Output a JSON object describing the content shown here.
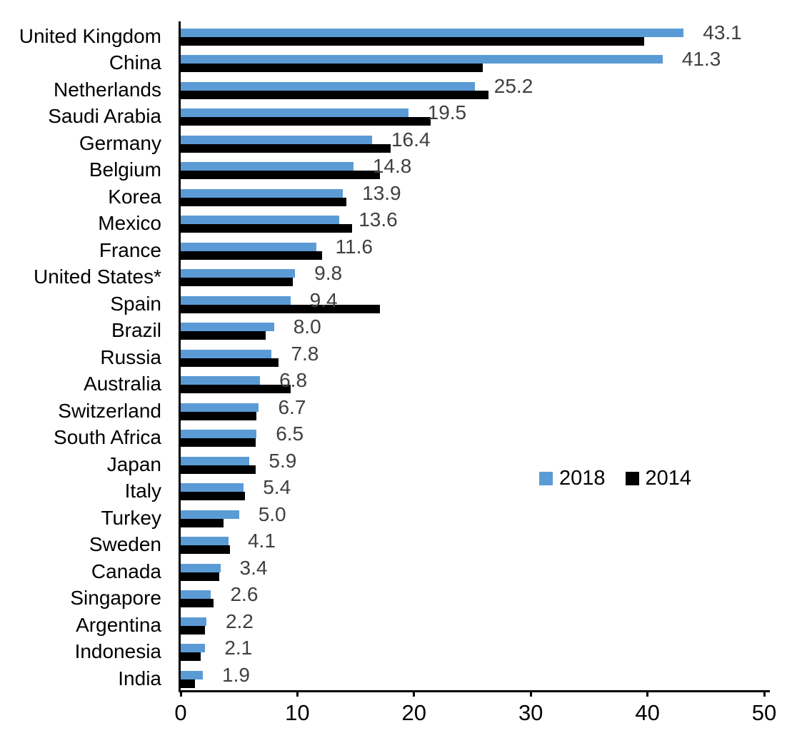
{
  "chart_data": {
    "type": "bar",
    "orientation": "horizontal",
    "title": "",
    "xlabel": "",
    "ylabel": "",
    "xlim": [
      0,
      50
    ],
    "x_ticks": [
      "0",
      "10",
      "20",
      "30",
      "40",
      "50"
    ],
    "grid": false,
    "legend_position": "middle-right",
    "categories": [
      "United Kingdom",
      "China",
      "Netherlands",
      "Saudi Arabia",
      "Germany",
      "Belgium",
      "Korea",
      "Mexico",
      "France",
      "United States*",
      "Spain",
      "Brazil",
      "Russia",
      "Australia",
      "Switzerland",
      "South Africa",
      "Japan",
      "Italy",
      "Turkey",
      "Sweden",
      "Canada",
      "Singapore",
      "Argentina",
      "Indonesia",
      "India"
    ],
    "series": [
      {
        "name": "2018",
        "color": "#5B9BD5",
        "values": [
          43.1,
          41.3,
          25.2,
          19.5,
          16.4,
          14.8,
          13.9,
          13.6,
          11.6,
          9.8,
          9.4,
          8.0,
          7.8,
          6.8,
          6.7,
          6.5,
          5.9,
          5.4,
          5.0,
          4.1,
          3.4,
          2.6,
          2.2,
          2.1,
          1.9
        ]
      },
      {
        "name": "2014",
        "color": "#000000",
        "values": [
          39.7,
          25.9,
          26.4,
          21.4,
          18.0,
          17.1,
          14.2,
          14.7,
          12.1,
          9.6,
          17.1,
          7.3,
          8.4,
          9.4,
          6.5,
          6.4,
          6.4,
          5.5,
          3.7,
          4.2,
          3.3,
          2.8,
          2.1,
          1.7,
          1.2
        ]
      }
    ],
    "data_labels": {
      "series": "2018",
      "values": [
        "43.1",
        "41.3",
        "25.2",
        "19.5",
        "16.4",
        "14.8",
        "13.9",
        "13.6",
        "11.6",
        "9.8",
        "9.4",
        "8.0",
        "7.8",
        "6.8",
        "6.7",
        "6.5",
        "5.9",
        "5.4",
        "5.0",
        "4.1",
        "3.4",
        "2.6",
        "2.2",
        "2.1",
        "1.9"
      ],
      "color": "#404040"
    }
  },
  "colors": {
    "background": "#ffffff",
    "axis": "#000000",
    "accent_blue": "#5B9BD5",
    "series_black": "#000000",
    "value_label": "#404040"
  }
}
